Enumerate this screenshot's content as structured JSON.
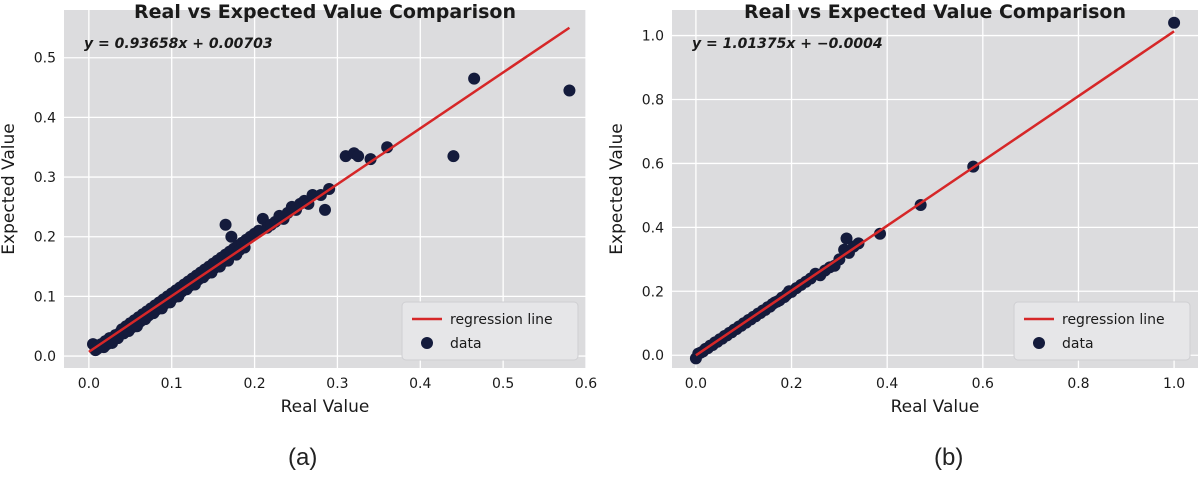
{
  "chart_data": [
    {
      "type": "scatter",
      "caption": "(a)",
      "title": "Real vs Expected Value Comparison",
      "xlabel": "Real Value",
      "ylabel": "Expected Value",
      "xlim": [
        -0.03,
        0.6
      ],
      "ylim": [
        -0.02,
        0.58
      ],
      "xticks": [
        0.0,
        0.1,
        0.2,
        0.3,
        0.4,
        0.5,
        0.6
      ],
      "yticks": [
        0.0,
        0.1,
        0.2,
        0.3,
        0.4,
        0.5
      ],
      "grid": true,
      "legend_position": "lower-right",
      "equation": "y = 0.93658x + 0.00703",
      "regression": {
        "name": "regression line",
        "slope": 0.93658,
        "intercept": 0.00703,
        "x_range": [
          0.0,
          0.58
        ],
        "color": "#d62728"
      },
      "series": [
        {
          "name": "data",
          "color": "#141b3c",
          "points": [
            [
              0.005,
              0.02
            ],
            [
              0.008,
              0.01
            ],
            [
              0.01,
              0.012
            ],
            [
              0.012,
              0.018
            ],
            [
              0.015,
              0.02
            ],
            [
              0.018,
              0.015
            ],
            [
              0.02,
              0.025
            ],
            [
              0.022,
              0.02
            ],
            [
              0.025,
              0.03
            ],
            [
              0.028,
              0.022
            ],
            [
              0.03,
              0.028
            ],
            [
              0.032,
              0.035
            ],
            [
              0.035,
              0.03
            ],
            [
              0.038,
              0.04
            ],
            [
              0.04,
              0.045
            ],
            [
              0.042,
              0.038
            ],
            [
              0.045,
              0.05
            ],
            [
              0.048,
              0.042
            ],
            [
              0.05,
              0.055
            ],
            [
              0.052,
              0.048
            ],
            [
              0.055,
              0.06
            ],
            [
              0.058,
              0.05
            ],
            [
              0.06,
              0.065
            ],
            [
              0.062,
              0.058
            ],
            [
              0.065,
              0.07
            ],
            [
              0.068,
              0.062
            ],
            [
              0.07,
              0.075
            ],
            [
              0.072,
              0.068
            ],
            [
              0.075,
              0.08
            ],
            [
              0.078,
              0.072
            ],
            [
              0.08,
              0.085
            ],
            [
              0.082,
              0.078
            ],
            [
              0.085,
              0.09
            ],
            [
              0.088,
              0.08
            ],
            [
              0.09,
              0.095
            ],
            [
              0.092,
              0.088
            ],
            [
              0.095,
              0.1
            ],
            [
              0.098,
              0.09
            ],
            [
              0.1,
              0.105
            ],
            [
              0.102,
              0.098
            ],
            [
              0.105,
              0.11
            ],
            [
              0.108,
              0.1
            ],
            [
              0.11,
              0.115
            ],
            [
              0.112,
              0.108
            ],
            [
              0.115,
              0.12
            ],
            [
              0.118,
              0.112
            ],
            [
              0.12,
              0.125
            ],
            [
              0.122,
              0.118
            ],
            [
              0.125,
              0.13
            ],
            [
              0.128,
              0.12
            ],
            [
              0.13,
              0.135
            ],
            [
              0.132,
              0.128
            ],
            [
              0.135,
              0.14
            ],
            [
              0.138,
              0.132
            ],
            [
              0.14,
              0.145
            ],
            [
              0.142,
              0.138
            ],
            [
              0.145,
              0.15
            ],
            [
              0.148,
              0.14
            ],
            [
              0.15,
              0.155
            ],
            [
              0.152,
              0.148
            ],
            [
              0.155,
              0.16
            ],
            [
              0.158,
              0.15
            ],
            [
              0.16,
              0.165
            ],
            [
              0.162,
              0.158
            ],
            [
              0.165,
              0.22
            ],
            [
              0.165,
              0.17
            ],
            [
              0.168,
              0.16
            ],
            [
              0.17,
              0.175
            ],
            [
              0.172,
              0.2
            ],
            [
              0.175,
              0.18
            ],
            [
              0.178,
              0.17
            ],
            [
              0.18,
              0.185
            ],
            [
              0.182,
              0.178
            ],
            [
              0.185,
              0.19
            ],
            [
              0.188,
              0.182
            ],
            [
              0.19,
              0.195
            ],
            [
              0.195,
              0.2
            ],
            [
              0.2,
              0.205
            ],
            [
              0.205,
              0.21
            ],
            [
              0.21,
              0.23
            ],
            [
              0.215,
              0.215
            ],
            [
              0.22,
              0.22
            ],
            [
              0.225,
              0.225
            ],
            [
              0.23,
              0.235
            ],
            [
              0.235,
              0.23
            ],
            [
              0.24,
              0.24
            ],
            [
              0.245,
              0.25
            ],
            [
              0.25,
              0.245
            ],
            [
              0.255,
              0.255
            ],
            [
              0.26,
              0.26
            ],
            [
              0.265,
              0.255
            ],
            [
              0.27,
              0.27
            ],
            [
              0.28,
              0.27
            ],
            [
              0.285,
              0.245
            ],
            [
              0.29,
              0.28
            ],
            [
              0.31,
              0.335
            ],
            [
              0.32,
              0.34
            ],
            [
              0.325,
              0.335
            ],
            [
              0.34,
              0.33
            ],
            [
              0.36,
              0.35
            ],
            [
              0.44,
              0.335
            ],
            [
              0.465,
              0.465
            ],
            [
              0.58,
              0.445
            ]
          ]
        }
      ]
    },
    {
      "type": "scatter",
      "caption": "(b)",
      "title": "Real vs Expected Value Comparison",
      "xlabel": "Real Value",
      "ylabel": "Expected Value",
      "xlim": [
        -0.05,
        1.05
      ],
      "ylim": [
        -0.04,
        1.08
      ],
      "xticks": [
        0.0,
        0.2,
        0.4,
        0.6,
        0.8,
        1.0
      ],
      "yticks": [
        0.0,
        0.2,
        0.4,
        0.6,
        0.8,
        1.0
      ],
      "grid": true,
      "legend_position": "lower-right",
      "equation": "y = 1.01375x + −0.0004",
      "regression": {
        "name": "regression line",
        "slope": 1.01375,
        "intercept": -0.0004,
        "x_range": [
          0.0,
          1.0
        ],
        "color": "#d62728"
      },
      "series": [
        {
          "name": "data",
          "color": "#141b3c",
          "points": [
            [
              0.0,
              -0.01
            ],
            [
              0.005,
              0.005
            ],
            [
              0.01,
              0.008
            ],
            [
              0.015,
              0.012
            ],
            [
              0.02,
              0.02
            ],
            [
              0.025,
              0.022
            ],
            [
              0.03,
              0.03
            ],
            [
              0.035,
              0.032
            ],
            [
              0.04,
              0.04
            ],
            [
              0.045,
              0.042
            ],
            [
              0.05,
              0.05
            ],
            [
              0.055,
              0.052
            ],
            [
              0.06,
              0.06
            ],
            [
              0.065,
              0.062
            ],
            [
              0.07,
              0.07
            ],
            [
              0.075,
              0.072
            ],
            [
              0.08,
              0.08
            ],
            [
              0.085,
              0.082
            ],
            [
              0.09,
              0.09
            ],
            [
              0.095,
              0.092
            ],
            [
              0.1,
              0.1
            ],
            [
              0.105,
              0.102
            ],
            [
              0.11,
              0.11
            ],
            [
              0.115,
              0.112
            ],
            [
              0.12,
              0.12
            ],
            [
              0.125,
              0.122
            ],
            [
              0.13,
              0.13
            ],
            [
              0.135,
              0.132
            ],
            [
              0.14,
              0.14
            ],
            [
              0.145,
              0.142
            ],
            [
              0.15,
              0.15
            ],
            [
              0.155,
              0.152
            ],
            [
              0.16,
              0.16
            ],
            [
              0.165,
              0.165
            ],
            [
              0.17,
              0.168
            ],
            [
              0.175,
              0.172
            ],
            [
              0.18,
              0.18
            ],
            [
              0.185,
              0.182
            ],
            [
              0.19,
              0.19
            ],
            [
              0.195,
              0.2
            ],
            [
              0.2,
              0.198
            ],
            [
              0.21,
              0.21
            ],
            [
              0.22,
              0.22
            ],
            [
              0.23,
              0.23
            ],
            [
              0.24,
              0.24
            ],
            [
              0.25,
              0.255
            ],
            [
              0.26,
              0.25
            ],
            [
              0.27,
              0.265
            ],
            [
              0.28,
              0.275
            ],
            [
              0.29,
              0.28
            ],
            [
              0.3,
              0.3
            ],
            [
              0.31,
              0.33
            ],
            [
              0.315,
              0.365
            ],
            [
              0.32,
              0.32
            ],
            [
              0.33,
              0.34
            ],
            [
              0.34,
              0.35
            ],
            [
              0.385,
              0.38
            ],
            [
              0.47,
              0.47
            ],
            [
              0.58,
              0.59
            ],
            [
              1.0,
              1.04
            ]
          ]
        }
      ]
    }
  ]
}
